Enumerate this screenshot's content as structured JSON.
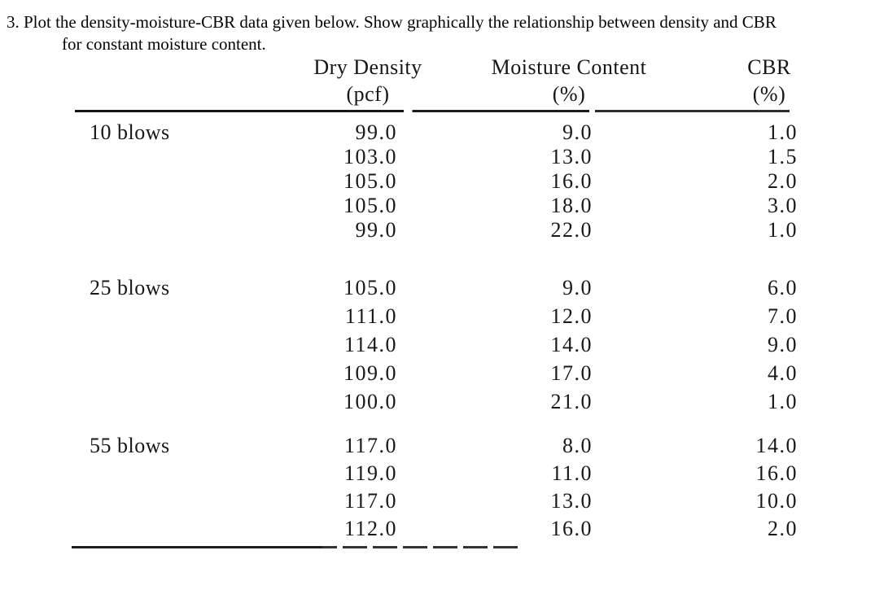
{
  "problem": {
    "line1": "3. Plot the density-moisture-CBR data given below. Show graphically the relationship between density and CBR",
    "line2": "for constant moisture content."
  },
  "table": {
    "columns": [
      {
        "label": "Dry Density",
        "unit": "(pcf)"
      },
      {
        "label": "Moisture Content",
        "unit": "(%)"
      },
      {
        "label": "CBR",
        "unit": "(%)"
      }
    ],
    "groups": [
      {
        "label": "10 blows",
        "rows": [
          {
            "dry_density": "99.0",
            "moisture_content": "9.0",
            "cbr": "1.0"
          },
          {
            "dry_density": "103.0",
            "moisture_content": "13.0",
            "cbr": "1.5"
          },
          {
            "dry_density": "105.0",
            "moisture_content": "16.0",
            "cbr": "2.0"
          },
          {
            "dry_density": "105.0",
            "moisture_content": "18.0",
            "cbr": "3.0"
          },
          {
            "dry_density": "99.0",
            "moisture_content": "22.0",
            "cbr": "1.0"
          }
        ]
      },
      {
        "label": "25 blows",
        "rows": [
          {
            "dry_density": "105.0",
            "moisture_content": "9.0",
            "cbr": "6.0"
          },
          {
            "dry_density": "111.0",
            "moisture_content": "12.0",
            "cbr": "7.0"
          },
          {
            "dry_density": "114.0",
            "moisture_content": "14.0",
            "cbr": "9.0"
          },
          {
            "dry_density": "109.0",
            "moisture_content": "17.0",
            "cbr": "4.0"
          },
          {
            "dry_density": "100.0",
            "moisture_content": "21.0",
            "cbr": "1.0"
          }
        ]
      },
      {
        "label": "55 blows",
        "rows": [
          {
            "dry_density": "117.0",
            "moisture_content": "8.0",
            "cbr": "14.0"
          },
          {
            "dry_density": "119.0",
            "moisture_content": "11.0",
            "cbr": "16.0"
          },
          {
            "dry_density": "117.0",
            "moisture_content": "13.0",
            "cbr": "10.0"
          },
          {
            "dry_density": "112.0",
            "moisture_content": "16.0",
            "cbr": "2.0"
          }
        ]
      }
    ]
  },
  "colors": {
    "ink": "#181818",
    "background": "#ffffff"
  }
}
